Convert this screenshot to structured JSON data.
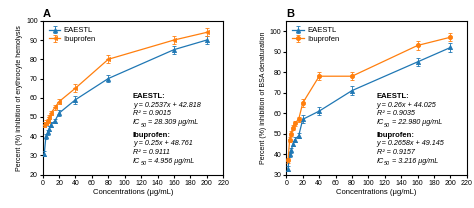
{
  "chart_data": [
    {
      "type": "line",
      "title": "A",
      "xlabel": "Concentrations (μg/mL)",
      "ylabel": "Percent (%) inhibition of erythrocyte hemolysis",
      "x": [
        2,
        4,
        6,
        8,
        10,
        15,
        20,
        40,
        80,
        160,
        200
      ],
      "xlim": [
        0,
        220
      ],
      "xticks": [
        0,
        20,
        40,
        60,
        80,
        100,
        120,
        140,
        160,
        180,
        200,
        220
      ],
      "ylim": [
        20,
        100
      ],
      "yticks": [
        20,
        30,
        40,
        50,
        60,
        70,
        80,
        90,
        100
      ],
      "legend": "upper left",
      "series": [
        {
          "name": "EAESTL",
          "marker": "triangle_up",
          "values": [
            31,
            40,
            42,
            44,
            46,
            48,
            52,
            59,
            70,
            85,
            90
          ],
          "yerr": [
            1.2,
            1.2,
            1.2,
            1.2,
            1.2,
            1.2,
            1.5,
            2.0,
            2.0,
            2.0,
            2.0
          ]
        },
        {
          "name": "Ibuprofen",
          "marker": "triangle_left",
          "values": [
            46,
            47,
            48,
            50,
            52,
            55,
            58,
            65,
            80,
            90,
            94
          ],
          "yerr": [
            1.2,
            1.2,
            1.2,
            1.2,
            1.2,
            1.2,
            1.5,
            2.0,
            2.0,
            2.0,
            2.0
          ]
        }
      ],
      "annotations": [
        {
          "title": "EAESTL:",
          "lines": [
            "y = 0.2537x + 42.818",
            "R² = 0.9015"
          ],
          "ic50": [
            "IC",
            "50",
            " = 28.309 μg/mL"
          ]
        },
        {
          "title": "Ibuprofen:",
          "lines": [
            "y = 0.25x + 48.761",
            "R² = 0.9111"
          ],
          "ic50": [
            "IC",
            "50",
            " = 4.956 μg/mL"
          ]
        }
      ]
    },
    {
      "type": "line",
      "title": "B",
      "xlabel": "Concentrations (μg/mL)",
      "ylabel": "Percent (%) inhibition of BSA denaturation",
      "x": [
        2,
        4,
        6,
        8,
        10,
        15,
        20,
        40,
        80,
        160,
        200
      ],
      "xlim": [
        0,
        220
      ],
      "xticks": [
        0,
        20,
        40,
        60,
        80,
        100,
        120,
        140,
        160,
        180,
        200,
        220
      ],
      "ylim": [
        30,
        105
      ],
      "yticks": [
        30,
        40,
        50,
        60,
        70,
        80,
        90,
        100
      ],
      "legend": "upper left",
      "series": [
        {
          "name": "EAESTL",
          "marker": "triangle_up",
          "values": [
            33,
            40,
            42,
            45,
            47,
            49,
            57,
            61,
            71,
            85,
            92
          ],
          "yerr": [
            1.2,
            1.2,
            1.2,
            1.2,
            1.2,
            1.2,
            2.0,
            2.0,
            2.0,
            2.0,
            2.0
          ]
        },
        {
          "name": "Ibuprofen",
          "marker": "circle",
          "values": [
            37,
            47,
            50,
            53,
            55,
            57,
            65,
            78,
            78,
            93,
            97
          ],
          "yerr": [
            1.2,
            1.2,
            1.2,
            1.2,
            1.2,
            1.2,
            2.0,
            2.0,
            2.0,
            2.0,
            2.0
          ]
        }
      ],
      "annotations": [
        {
          "title": "EAESTL:",
          "lines": [
            "y = 0.26x + 44.025",
            "R² = 0.9035"
          ],
          "ic50": [
            "IC",
            "50",
            " = 22.980 μg/mL"
          ]
        },
        {
          "title": "Ibuprofen:",
          "lines": [
            "y = 0.2658x + 49.145",
            "R² = 0.9157"
          ],
          "ic50": [
            "IC",
            "50",
            " = 3.216 μg/mL"
          ]
        }
      ]
    }
  ]
}
